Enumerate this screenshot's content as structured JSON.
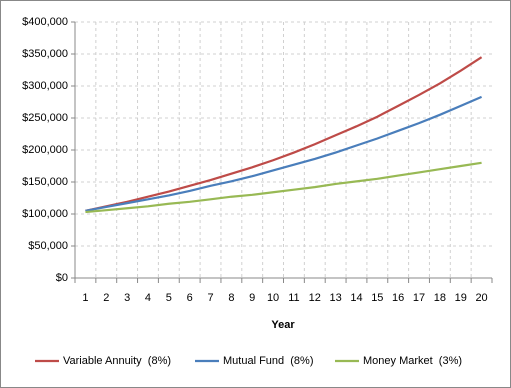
{
  "chart_data": {
    "type": "line",
    "x_label": "Year",
    "categories": [
      "1",
      "2",
      "3",
      "4",
      "5",
      "6",
      "7",
      "8",
      "9",
      "10",
      "11",
      "12",
      "13",
      "14",
      "15",
      "16",
      "17",
      "18",
      "19",
      "20"
    ],
    "series": [
      {
        "name": "Variable Annuity  (8%)",
        "color": "#be4b48",
        "values": [
          105000,
          112000,
          119000,
          127000,
          135000,
          144000,
          153000,
          163000,
          173000,
          184000,
          196000,
          209000,
          223000,
          237000,
          252000,
          269000,
          286000,
          304000,
          324000,
          345000
        ]
      },
      {
        "name": "Mutual Fund  (8%)",
        "color": "#4a7ebb",
        "values": [
          105000,
          111000,
          117000,
          123000,
          129000,
          136000,
          144000,
          151000,
          159000,
          168000,
          177000,
          186000,
          196000,
          207000,
          218000,
          230000,
          242000,
          255000,
          269000,
          283000
        ]
      },
      {
        "name": "Money Market  (3%)",
        "color": "#98b954",
        "values": [
          103000,
          106000,
          109000,
          112000,
          116000,
          119000,
          123000,
          127000,
          130000,
          134000,
          138000,
          142000,
          147000,
          151000,
          155000,
          160000,
          165000,
          170000,
          175000,
          180000
        ]
      }
    ],
    "ylim": [
      0,
      400000
    ],
    "yticks": [
      {
        "value": 0,
        "label": "$0"
      },
      {
        "value": 50000,
        "label": "$50,000"
      },
      {
        "value": 100000,
        "label": "$100,000"
      },
      {
        "value": 150000,
        "label": "$150,000"
      },
      {
        "value": 200000,
        "label": "$200,000"
      },
      {
        "value": 250000,
        "label": "$250,000"
      },
      {
        "value": 300000,
        "label": "$300,000"
      },
      {
        "value": 350000,
        "label": "$350,000"
      },
      {
        "value": 400000,
        "label": "$400,000"
      }
    ],
    "grid": true,
    "legend": "bottom"
  }
}
